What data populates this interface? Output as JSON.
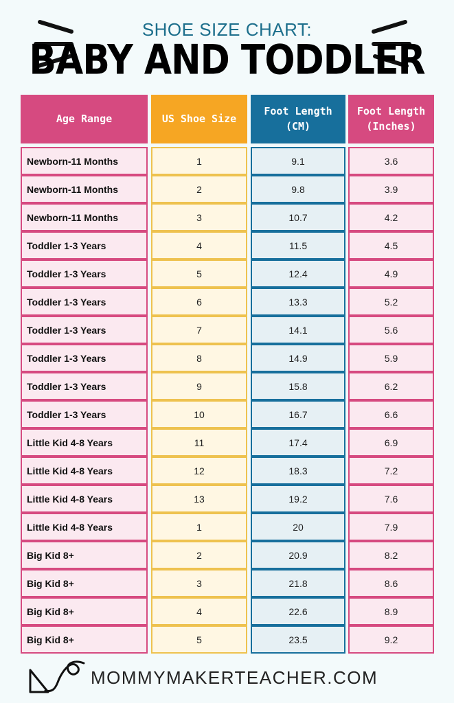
{
  "header": {
    "subtitle": "SHOE SIZE CHART:",
    "title": "BABY AND TODDLER"
  },
  "table": {
    "columns": [
      "Age Range",
      "US Shoe Size",
      "Foot Length\n(CM)",
      "Foot Length\n(Inches)"
    ],
    "rows": [
      [
        "Newborn-11 Months",
        "1",
        "9.1",
        "3.6"
      ],
      [
        "Newborn-11 Months",
        "2",
        "9.8",
        "3.9"
      ],
      [
        "Newborn-11 Months",
        "3",
        "10.7",
        "4.2"
      ],
      [
        "Toddler 1-3 Years",
        "4",
        "11.5",
        "4.5"
      ],
      [
        "Toddler 1-3 Years",
        "5",
        "12.4",
        "4.9"
      ],
      [
        "Toddler 1-3 Years",
        "6",
        "13.3",
        "5.2"
      ],
      [
        "Toddler 1-3 Years",
        "7",
        "14.1",
        "5.6"
      ],
      [
        "Toddler 1-3 Years",
        "8",
        "14.9",
        "5.9"
      ],
      [
        "Toddler 1-3 Years",
        "9",
        "15.8",
        "6.2"
      ],
      [
        "Toddler 1-3 Years",
        "10",
        "16.7",
        "6.6"
      ],
      [
        "Little Kid 4-8 Years",
        "11",
        "17.4",
        "6.9"
      ],
      [
        "Little Kid 4-8 Years",
        "12",
        "18.3",
        "7.2"
      ],
      [
        "Little Kid 4-8 Years",
        "13",
        "19.2",
        "7.6"
      ],
      [
        "Little Kid 4-8 Years",
        "1",
        "20",
        "7.9"
      ],
      [
        "Big Kid 8+",
        "2",
        "20.9",
        "8.2"
      ],
      [
        "Big Kid 8+",
        "3",
        "21.8",
        "8.6"
      ],
      [
        "Big Kid 8+",
        "4",
        "22.6",
        "8.9"
      ],
      [
        "Big Kid 8+",
        "5",
        "23.5",
        "9.2"
      ]
    ]
  },
  "footer": {
    "site": "MOMMYMAKERTEACHER.COM"
  },
  "colors": {
    "pink": "#d64a80",
    "orange": "#f6a623",
    "blue": "#176f9c",
    "teal_text": "#1d6f8c",
    "background": "#f3fafb"
  },
  "icons": [
    "burst-lines-icon",
    "curly-arrow-icon"
  ]
}
